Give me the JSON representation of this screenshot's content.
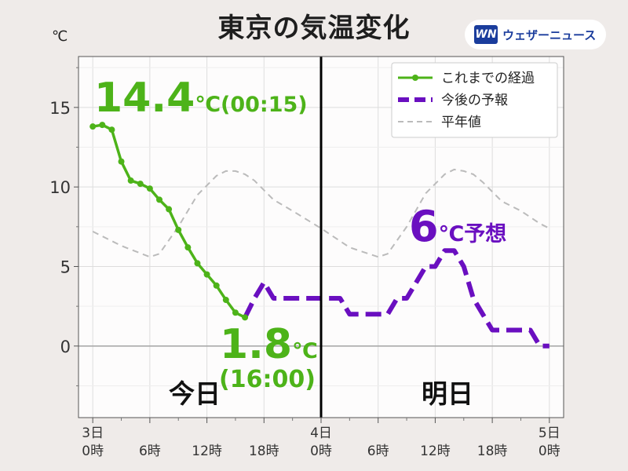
{
  "header": {
    "title": "東京の気温変化",
    "unit": "℃",
    "logo_mark": "WN",
    "logo_text": "ウェザーニュース"
  },
  "colors": {
    "observed": "#4db319",
    "forecast": "#6a0fc0",
    "normal": "#bbbbbb",
    "grid": "#dddddd",
    "zero": "#aaaaaa",
    "divider": "#000000",
    "plot_bg": "#fdfcfc"
  },
  "chart_data": {
    "type": "line",
    "title": "東京の気温変化",
    "ylabel": "℃",
    "ylim": [
      -4.5,
      18.2
    ],
    "xlim": [
      -1.5,
      49.5
    ],
    "y_ticks": [
      0,
      5,
      10,
      15
    ],
    "grid": true,
    "legend_position": "top-right",
    "x_ticks": [
      {
        "x": 0,
        "label": [
          "3日",
          "0時"
        ]
      },
      {
        "x": 6,
        "label": [
          "",
          "6時"
        ]
      },
      {
        "x": 12,
        "label": [
          "",
          "12時"
        ]
      },
      {
        "x": 18,
        "label": [
          "",
          "18時"
        ]
      },
      {
        "x": 24,
        "label": [
          "4日",
          "0時"
        ]
      },
      {
        "x": 30,
        "label": [
          "",
          "6時"
        ]
      },
      {
        "x": 36,
        "label": [
          "",
          "12時"
        ]
      },
      {
        "x": 42,
        "label": [
          "",
          "18時"
        ]
      },
      {
        "x": 48,
        "label": [
          "5日",
          "0時"
        ]
      }
    ],
    "minor_x_ticks": [
      3,
      9,
      15,
      21,
      27,
      33,
      39,
      45
    ],
    "divider_x": 24,
    "series": [
      {
        "name": "これまでの経過",
        "style": "solid-markers",
        "x": [
          0,
          1,
          2,
          3,
          4,
          5,
          6,
          7,
          8,
          9,
          10,
          11,
          12,
          13,
          14,
          15,
          16
        ],
        "y": [
          13.8,
          13.9,
          13.6,
          11.6,
          10.4,
          10.2,
          9.9,
          9.2,
          8.6,
          7.3,
          6.2,
          5.2,
          4.5,
          3.8,
          2.9,
          2.1,
          1.8
        ]
      },
      {
        "name": "今後の予報",
        "style": "dashed-thick",
        "x": [
          16,
          17,
          18,
          19,
          20,
          21,
          22,
          23,
          24,
          25,
          26,
          27,
          28,
          29,
          30,
          31,
          32,
          33,
          34,
          35,
          36,
          37,
          38,
          39,
          40,
          41,
          42,
          43,
          44,
          45,
          46,
          47,
          48
        ],
        "y": [
          1.8,
          3.0,
          4.0,
          3.0,
          3.0,
          3.0,
          3.0,
          3.0,
          3.0,
          3.0,
          3.0,
          2.0,
          2.0,
          2.0,
          2.0,
          2.0,
          3.0,
          3.0,
          4.0,
          5.0,
          5.0,
          6.0,
          6.0,
          5.0,
          3.0,
          2.0,
          1.0,
          1.0,
          1.0,
          1.0,
          1.0,
          0.0,
          0.0
        ]
      },
      {
        "name": "平年値",
        "style": "dashed-thin",
        "x": [
          0,
          3,
          6,
          7,
          9,
          11,
          13,
          14,
          15,
          16,
          17,
          19,
          21,
          24,
          27,
          30,
          31,
          33,
          35,
          37,
          38,
          39,
          40,
          41,
          43,
          45,
          47,
          48
        ],
        "y": [
          7.2,
          6.3,
          5.6,
          5.8,
          7.5,
          9.5,
          10.7,
          11.0,
          11.0,
          10.8,
          10.4,
          9.2,
          8.5,
          7.4,
          6.2,
          5.6,
          5.8,
          7.5,
          9.6,
          10.8,
          11.1,
          11.0,
          10.8,
          10.3,
          9.1,
          8.5,
          7.7,
          7.4
        ]
      }
    ],
    "annotations": [
      {
        "text": "14.4",
        "unit": "℃",
        "extra": "(00:15)",
        "color": "observed",
        "line": 1
      },
      {
        "text": "1.8",
        "unit": "℃",
        "extra": "",
        "color": "observed",
        "line": 1
      },
      {
        "text": "(16:00)",
        "unit": "",
        "extra": "",
        "color": "observed",
        "line": 2
      },
      {
        "text": "6",
        "unit": "℃",
        "extra": "予想",
        "color": "forecast",
        "line": 1
      }
    ],
    "day_labels": [
      "今日",
      "明日"
    ]
  }
}
